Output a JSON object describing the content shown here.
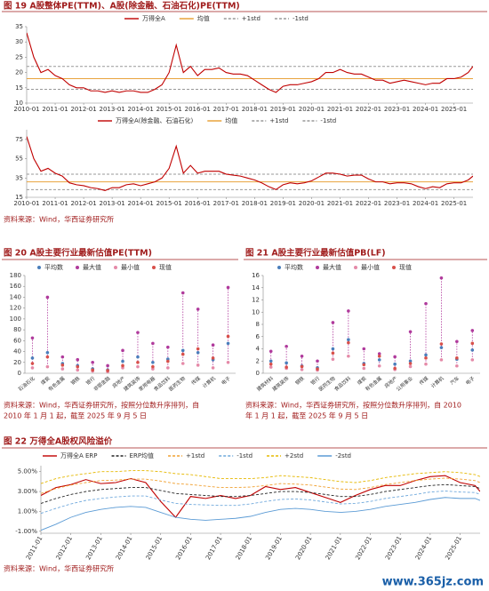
{
  "watermark": "www.365jz.com",
  "chart_data": [
    {
      "type": "line",
      "title": "图 19 A股整体PE(TTM)、A股(除金融、石油石化)PE(TTM)",
      "x": [
        "2010-01",
        "2010-04",
        "2010-07",
        "2010-10",
        "2011-01",
        "2011-04",
        "2011-07",
        "2011-10",
        "2012-01",
        "2012-04",
        "2012-07",
        "2012-10",
        "2013-01",
        "2013-04",
        "2013-07",
        "2013-10",
        "2014-01",
        "2014-04",
        "2014-07",
        "2014-10",
        "2015-01",
        "2015-04",
        "2015-07",
        "2015-10",
        "2016-01",
        "2016-04",
        "2016-07",
        "2016-10",
        "2017-01",
        "2017-04",
        "2017-07",
        "2017-10",
        "2018-01",
        "2018-04",
        "2018-07",
        "2018-10",
        "2019-01",
        "2019-04",
        "2019-07",
        "2019-10",
        "2020-01",
        "2020-04",
        "2020-07",
        "2020-10",
        "2021-01",
        "2021-04",
        "2021-07",
        "2021-10",
        "2022-01",
        "2022-04",
        "2022-07",
        "2022-10",
        "2023-01",
        "2023-04",
        "2023-07",
        "2023-10",
        "2024-01",
        "2024-04",
        "2024-07",
        "2024-10",
        "2025-01",
        "2025-04",
        "2025-07",
        "2025-09"
      ],
      "series": [
        {
          "name": "万得全A",
          "color": "#c00000",
          "values": [
            33,
            25,
            20,
            21,
            19,
            18,
            16,
            15,
            15,
            14,
            14,
            13.5,
            14,
            13.5,
            14,
            14,
            13.5,
            13.5,
            14.5,
            16,
            20,
            29,
            20,
            22,
            19,
            21,
            21,
            21.5,
            20,
            19.5,
            19.5,
            19,
            17.5,
            16,
            14.5,
            13.5,
            15.5,
            16,
            16,
            16.5,
            17,
            18,
            20,
            20,
            21,
            20,
            19.5,
            19.5,
            18.5,
            17.5,
            17.5,
            16.5,
            17,
            17.5,
            17,
            16.5,
            16,
            16.5,
            16.5,
            18,
            18,
            18.5,
            20,
            22
          ]
        }
      ],
      "reference_lines": [
        {
          "name": "均值",
          "color": "#e8a33d",
          "value": 18,
          "dash": false
        },
        {
          "name": "+1std",
          "color": "#999999",
          "value": 22,
          "dash": true
        },
        {
          "name": "-1std",
          "color": "#999999",
          "value": 14.5,
          "dash": true
        }
      ],
      "xlim": [
        "2010-01",
        "2025-09"
      ],
      "xticks": [
        "2010-01",
        "2011-01",
        "2012-01",
        "2013-01",
        "2014-01",
        "2015-01",
        "2016-01",
        "2017-01",
        "2018-01",
        "2019-01",
        "2020-01",
        "2021-01",
        "2022-01",
        "2023-01",
        "2024-01",
        "2025-01"
      ],
      "ylim": [
        10,
        35
      ],
      "yticks": [
        10,
        15,
        20,
        25,
        30,
        35
      ]
    },
    {
      "type": "line",
      "x": [
        "2010-01",
        "2010-04",
        "2010-07",
        "2010-10",
        "2011-01",
        "2011-04",
        "2011-07",
        "2011-10",
        "2012-01",
        "2012-04",
        "2012-07",
        "2012-10",
        "2013-01",
        "2013-04",
        "2013-07",
        "2013-10",
        "2014-01",
        "2014-04",
        "2014-07",
        "2014-10",
        "2015-01",
        "2015-04",
        "2015-07",
        "2015-10",
        "2016-01",
        "2016-04",
        "2016-07",
        "2016-10",
        "2017-01",
        "2017-04",
        "2017-07",
        "2017-10",
        "2018-01",
        "2018-04",
        "2018-07",
        "2018-10",
        "2019-01",
        "2019-04",
        "2019-07",
        "2019-10",
        "2020-01",
        "2020-04",
        "2020-07",
        "2020-10",
        "2021-01",
        "2021-04",
        "2021-07",
        "2021-10",
        "2022-01",
        "2022-04",
        "2022-07",
        "2022-10",
        "2023-01",
        "2023-04",
        "2023-07",
        "2023-10",
        "2024-01",
        "2024-04",
        "2024-07",
        "2024-10",
        "2025-01",
        "2025-04",
        "2025-07",
        "2025-09"
      ],
      "series": [
        {
          "name": "万得全A(除金融、石油石化)",
          "color": "#c00000",
          "values": [
            78,
            55,
            42,
            45,
            40,
            37,
            30,
            28,
            27,
            25,
            24,
            22,
            25,
            25,
            28,
            29,
            27,
            29,
            31,
            35,
            45,
            68,
            40,
            48,
            40,
            42,
            42,
            42,
            39,
            38,
            37,
            35,
            33,
            30,
            26,
            23,
            28,
            30,
            29,
            30,
            32,
            36,
            40,
            40,
            39,
            37,
            38,
            38,
            34,
            31,
            31,
            29,
            30,
            30,
            29,
            26,
            24,
            26,
            25,
            29,
            30,
            30,
            33,
            37
          ]
        }
      ],
      "reference_lines": [
        {
          "name": "均值",
          "color": "#e8a33d",
          "value": 31,
          "dash": false
        },
        {
          "name": "+1std",
          "color": "#999999",
          "value": 39,
          "dash": true
        },
        {
          "name": "-1std",
          "color": "#999999",
          "value": 23,
          "dash": true
        }
      ],
      "xlim": [
        "2010-01",
        "2025-09"
      ],
      "xticks": [
        "2010-01",
        "2011-01",
        "2012-01",
        "2013-01",
        "2014-01",
        "2015-01",
        "2016-01",
        "2017-01",
        "2018-01",
        "2019-01",
        "2020-01",
        "2021-01",
        "2022-01",
        "2023-01",
        "2024-01",
        "2025-01"
      ],
      "ylim": [
        15,
        85
      ],
      "yticks": [
        15,
        35,
        55,
        75
      ],
      "source": [
        "资料来源：Wind，华西证券研究所"
      ]
    },
    {
      "type": "dot",
      "title": "图 20 A股主要行业最新估值PE(TTM)",
      "categories": [
        "石油石化",
        "煤炭",
        "有色金属",
        "钢铁",
        "银行",
        "非银金融",
        "房地产",
        "建筑装饰",
        "家用电器",
        "食品饮料",
        "医药生物",
        "传媒",
        "计算机",
        "电子"
      ],
      "series": [
        {
          "name": "平均数",
          "color": "#4a7ebb",
          "values": [
            28,
            38,
            18,
            14,
            8,
            6,
            22,
            30,
            20,
            26,
            42,
            38,
            25,
            55
          ]
        },
        {
          "name": "最大值",
          "color": "#b03a9c",
          "values": [
            65,
            140,
            30,
            25,
            20,
            14,
            42,
            75,
            55,
            48,
            148,
            118,
            52,
            158
          ]
        },
        {
          "name": "最小值",
          "color": "#e58aa8",
          "values": [
            10,
            12,
            8,
            6,
            4,
            3,
            10,
            12,
            8,
            10,
            18,
            15,
            10,
            20
          ]
        },
        {
          "name": "现值",
          "color": "#d8504a",
          "values": [
            18,
            30,
            15,
            12,
            6,
            5,
            14,
            20,
            12,
            22,
            35,
            45,
            28,
            68
          ]
        }
      ],
      "ylim": [
        0,
        180
      ],
      "yticks": [
        0,
        20,
        40,
        60,
        80,
        100,
        120,
        140,
        160,
        180
      ],
      "source": [
        "资料来源：Wind，华西证券研究所，按照分位数升序排列，自",
        "2010 年 1 月 1 起，截至 2025 年 9 月 5 日"
      ]
    },
    {
      "type": "dot",
      "title": "图 21 A股主要行业最新估值PB(LF)",
      "categories": [
        "建筑材料",
        "建筑装饰",
        "钢铁",
        "银行",
        "医药生物",
        "食品饮料",
        "煤炭",
        "有色金属",
        "房地产",
        "公用事业",
        "传媒",
        "计算机",
        "汽车",
        "电子"
      ],
      "series": [
        {
          "name": "平均数",
          "color": "#4a7ebb",
          "values": [
            2,
            1.7,
            1.2,
            0.9,
            4,
            5.5,
            1.6,
            2.2,
            1.5,
            2,
            3,
            4.2,
            2.3,
            3.8
          ]
        },
        {
          "name": "最大值",
          "color": "#b03a9c",
          "values": [
            3.6,
            4.4,
            2.8,
            2,
            8.3,
            10.2,
            4,
            3.2,
            2.7,
            6.8,
            11.4,
            15.6,
            5.2,
            7
          ]
        },
        {
          "name": "最小值",
          "color": "#e58aa8",
          "values": [
            1,
            0.8,
            0.6,
            0.5,
            2.3,
            2.8,
            0.8,
            1.2,
            0.6,
            1.1,
            1.5,
            2.2,
            1.2,
            2.2
          ]
        },
        {
          "name": "现值",
          "color": "#d8504a",
          "values": [
            1.5,
            1,
            1.1,
            0.7,
            3.3,
            5,
            1.4,
            2.8,
            0.8,
            1.6,
            2.5,
            4.8,
            2.5,
            4.9
          ]
        }
      ],
      "ylim": [
        0,
        16
      ],
      "yticks": [
        0,
        2,
        4,
        6,
        8,
        10,
        12,
        14,
        16
      ],
      "source": [
        "资料来源：Wind，华西证券研究所，按照分位数升序排列，自 2010",
        "年 1 月 1 起，截至 2025 年 9 月 5 日"
      ]
    },
    {
      "type": "line",
      "title": "图 22 万得全A股权风险溢价",
      "x": [
        "2011-01",
        "2011-07",
        "2012-01",
        "2012-07",
        "2013-01",
        "2013-07",
        "2014-01",
        "2014-07",
        "2015-01",
        "2015-07",
        "2016-01",
        "2016-07",
        "2017-01",
        "2017-07",
        "2018-01",
        "2018-07",
        "2019-01",
        "2019-07",
        "2020-01",
        "2020-07",
        "2021-01",
        "2021-07",
        "2022-01",
        "2022-07",
        "2023-01",
        "2023-07",
        "2024-01",
        "2024-07",
        "2025-01",
        "2025-07",
        "2025-09"
      ],
      "series": [
        {
          "name": "万得全A ERP",
          "color": "#c00000",
          "dash": false,
          "values": [
            2.6,
            3.4,
            3.7,
            4.2,
            3.8,
            3.9,
            4.3,
            3.9,
            2,
            0.4,
            2.5,
            2.3,
            2.6,
            2.3,
            2.6,
            3.5,
            3.2,
            3.4,
            2.9,
            2.4,
            1.9,
            2.6,
            3.2,
            3.6,
            3.6,
            4.1,
            4.5,
            4.6,
            3.9,
            3.6,
            3
          ]
        },
        {
          "name": "ERP均值",
          "color": "#222222",
          "dash": true,
          "values": [
            1.8,
            2.3,
            2.7,
            3,
            3.2,
            3.3,
            3.4,
            3.4,
            3.1,
            2.8,
            2.7,
            2.6,
            2.5,
            2.5,
            2.6,
            2.8,
            3,
            3,
            2.9,
            2.7,
            2.5,
            2.5,
            2.7,
            3,
            3.2,
            3.4,
            3.6,
            3.7,
            3.6,
            3.5,
            3.3
          ]
        },
        {
          "name": "+1std",
          "color": "#f0a030",
          "dash": true,
          "values": [
            2.8,
            3.3,
            3.65,
            3.9,
            4.1,
            4.15,
            4.25,
            4.25,
            4.05,
            3.8,
            3.7,
            3.55,
            3.4,
            3.4,
            3.45,
            3.6,
            3.8,
            3.75,
            3.65,
            3.45,
            3.25,
            3.2,
            3.4,
            3.7,
            3.9,
            4.1,
            4.25,
            4.35,
            4.25,
            4.1,
            3.9
          ]
        },
        {
          "name": "-1std",
          "color": "#6fa8dc",
          "dash": true,
          "values": [
            0.8,
            1.3,
            1.75,
            2.1,
            2.3,
            2.45,
            2.55,
            2.55,
            2.15,
            1.8,
            1.7,
            1.65,
            1.6,
            1.6,
            1.75,
            2,
            2.2,
            2.25,
            2.15,
            1.95,
            1.75,
            1.8,
            2,
            2.3,
            2.5,
            2.7,
            2.95,
            3.05,
            2.95,
            2.9,
            2.7
          ]
        },
        {
          "name": "+2std",
          "color": "#e6b800",
          "dash": true,
          "values": [
            3.8,
            4.3,
            4.6,
            4.8,
            5,
            5,
            5.1,
            5.1,
            5,
            4.8,
            4.7,
            4.5,
            4.3,
            4.3,
            4.3,
            4.4,
            4.6,
            4.5,
            4.4,
            4.2,
            4,
            3.9,
            4.1,
            4.4,
            4.6,
            4.8,
            4.9,
            5,
            4.9,
            4.7,
            4.5
          ]
        },
        {
          "name": "-2std",
          "color": "#5b9bd5",
          "dash": false,
          "values": [
            -0.9,
            -0.3,
            0.4,
            0.9,
            1.2,
            1.4,
            1.5,
            1.4,
            0.9,
            0.4,
            0.2,
            0.1,
            0.2,
            0.3,
            0.5,
            0.9,
            1.2,
            1.3,
            1.2,
            1,
            0.9,
            1,
            1.2,
            1.5,
            1.7,
            1.9,
            2.2,
            2.4,
            2.3,
            2.3,
            2.1
          ]
        }
      ],
      "xlim": [
        "2011-01",
        "2025-09"
      ],
      "xticks": [
        "2011-01",
        "2012-01",
        "2013-01",
        "2014-01",
        "2015-01",
        "2016-01",
        "2017-01",
        "2018-01",
        "2019-01",
        "2020-01",
        "2021-01",
        "2022-01",
        "2023-01",
        "2024-01",
        "2025-01"
      ],
      "ylim": [
        -1.2,
        5.6
      ],
      "yticks": [
        {
          "value": -1,
          "label": "-1.00%"
        },
        {
          "value": 1,
          "label": "1.00%"
        },
        {
          "value": 3,
          "label": "3.00%"
        },
        {
          "value": 5,
          "label": "5.00%"
        }
      ],
      "source": [
        "资料来源：Wind，华西证券研究所"
      ]
    }
  ]
}
